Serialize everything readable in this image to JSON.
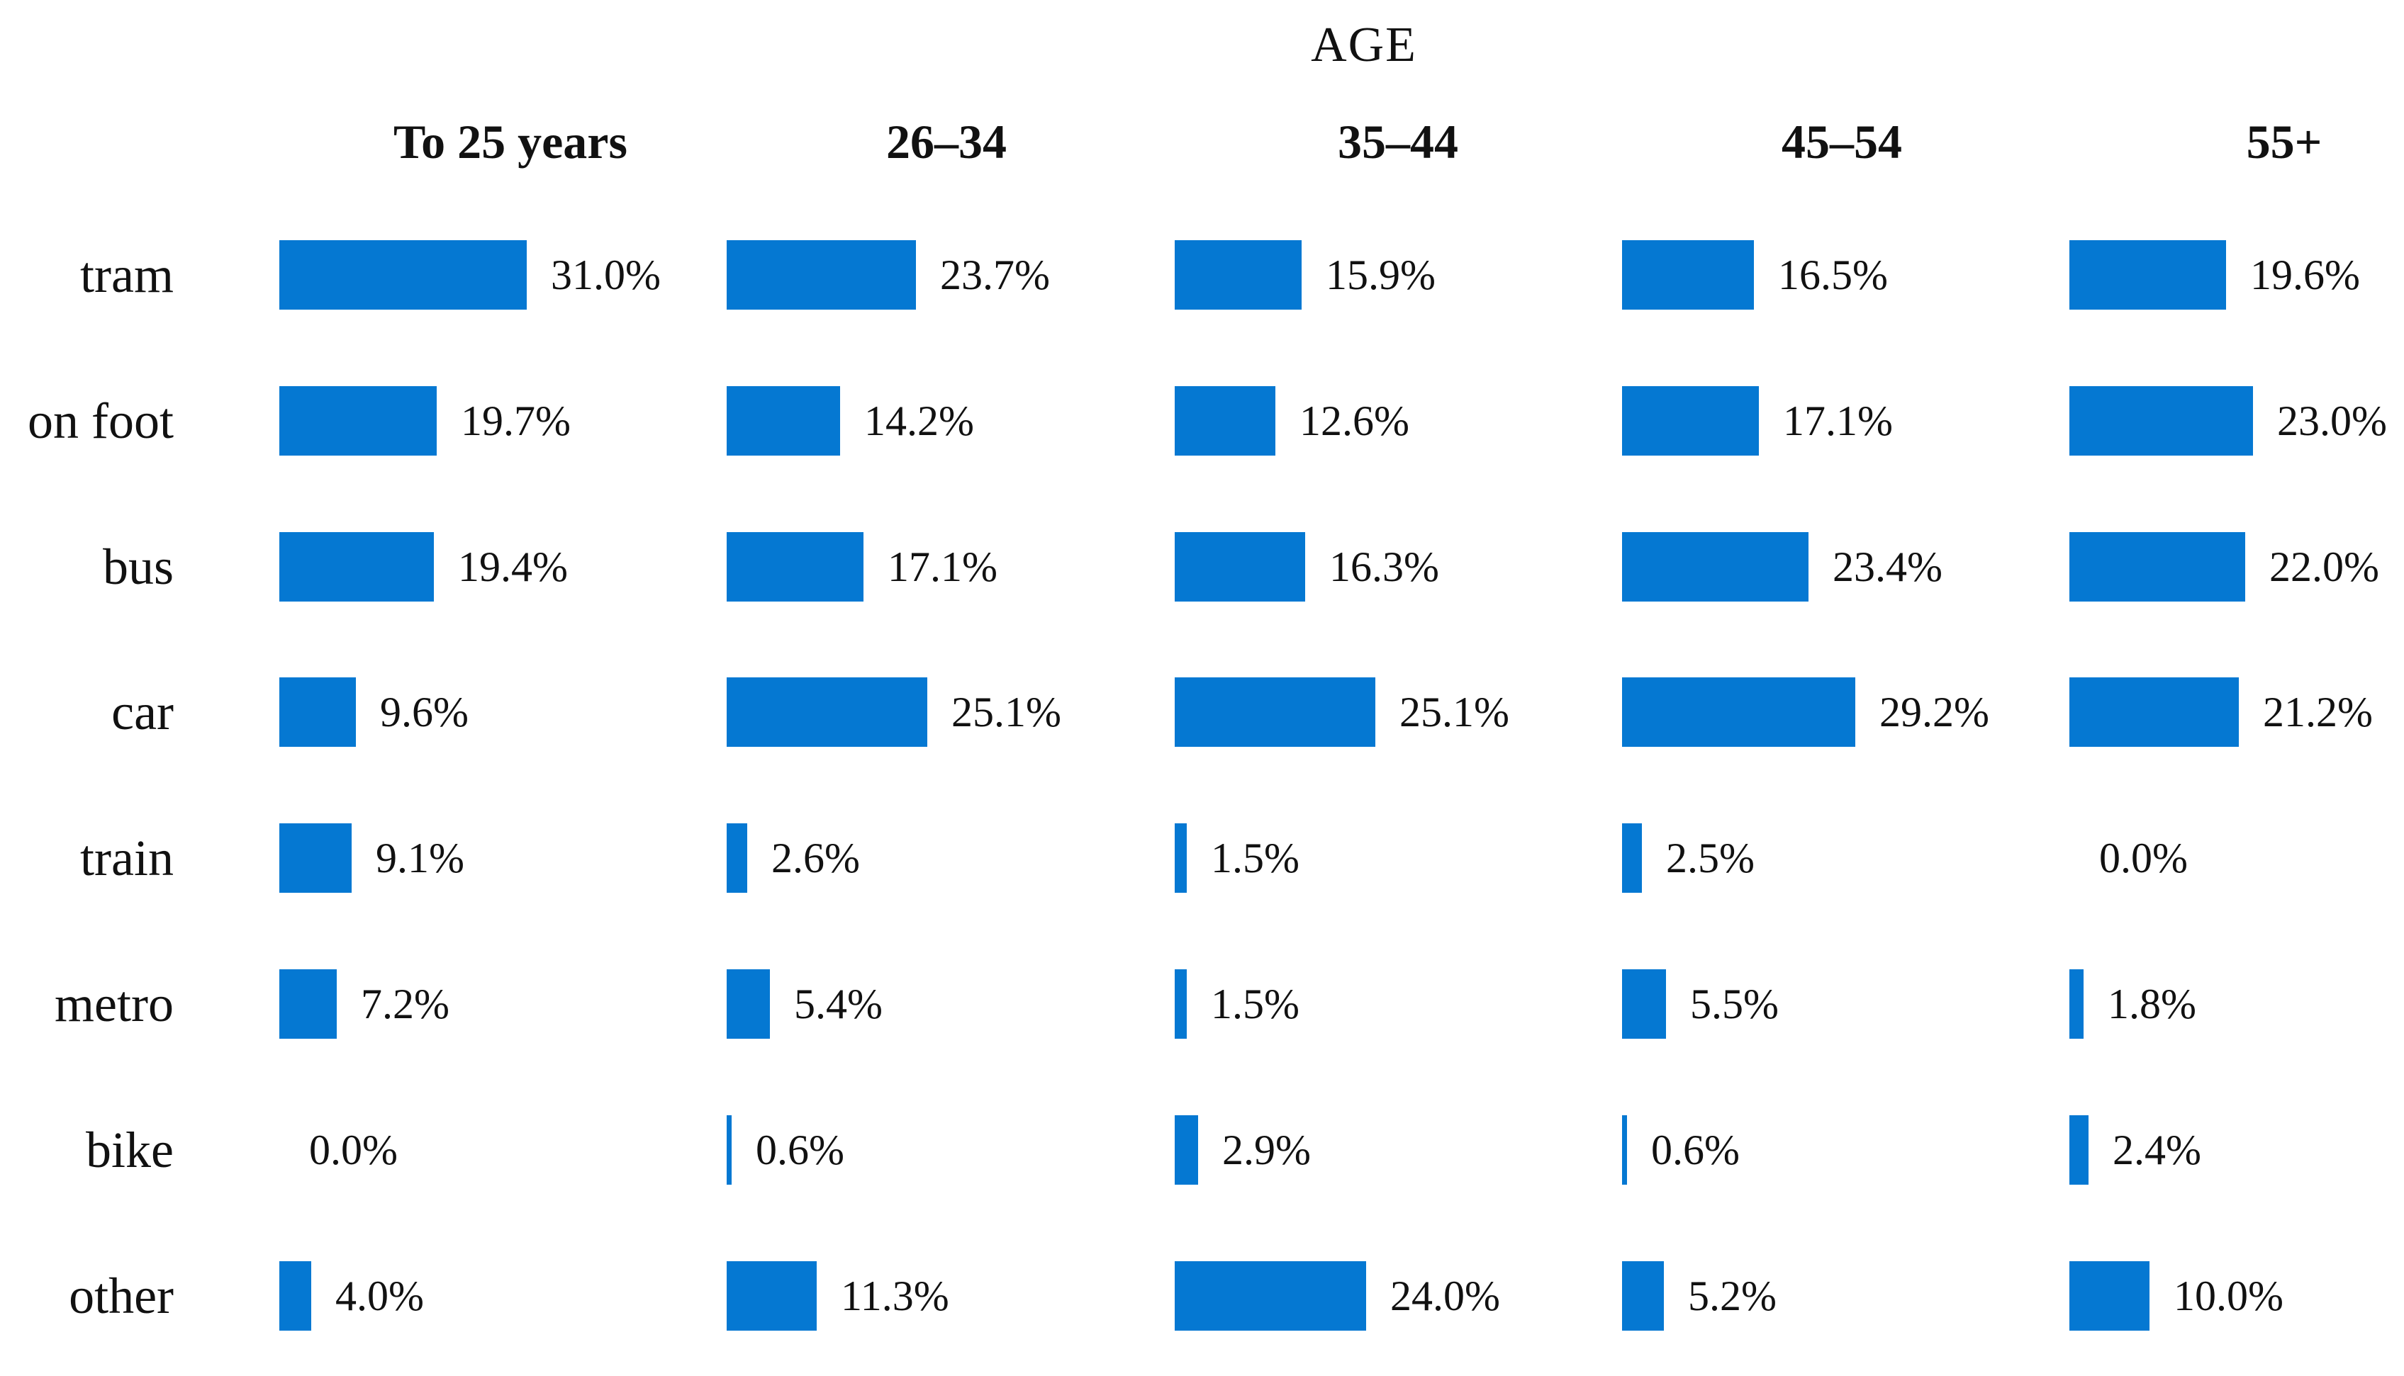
{
  "title": "AGE",
  "chart_data": {
    "type": "bar",
    "orientation": "horizontal",
    "title": "AGE",
    "column_headers": [
      "To 25 years",
      "26–34",
      "35–44",
      "45–54",
      "55+"
    ],
    "row_categories": [
      "tram",
      "on foot",
      "bus",
      "car",
      "train",
      "metro",
      "bike",
      "other"
    ],
    "series": [
      {
        "name": "To 25 years",
        "values": [
          31.0,
          19.7,
          19.4,
          9.6,
          9.1,
          7.2,
          0.0,
          4.0
        ]
      },
      {
        "name": "26–34",
        "values": [
          23.7,
          14.2,
          17.1,
          25.1,
          2.6,
          5.4,
          0.6,
          11.3
        ]
      },
      {
        "name": "35–44",
        "values": [
          15.9,
          12.6,
          16.3,
          25.1,
          1.5,
          1.5,
          2.9,
          24.0
        ]
      },
      {
        "name": "45–54",
        "values": [
          16.5,
          17.1,
          23.4,
          29.2,
          2.5,
          5.5,
          0.6,
          5.2
        ]
      },
      {
        "name": "55+",
        "values": [
          19.6,
          23.0,
          22.0,
          21.2,
          0.0,
          1.8,
          2.4,
          10.0
        ]
      }
    ],
    "value_labels": [
      [
        "31.0%",
        "19.7%",
        "19.4%",
        "9.6%",
        "9.1%",
        "7.2%",
        "0.0%",
        "4.0%"
      ],
      [
        "23.7%",
        "14.2%",
        "17.1%",
        "25.1%",
        "2.6%",
        "5.4%",
        "0.6%",
        "11.3%"
      ],
      [
        "15.9%",
        "12.6%",
        "16.3%",
        "25.1%",
        "1.5%",
        "1.5%",
        "2.9%",
        "24.0%"
      ],
      [
        "16.5%",
        "17.1%",
        "23.4%",
        "29.2%",
        "2.5%",
        "5.5%",
        "0.6%",
        "5.2%"
      ],
      [
        "19.6%",
        "23.0%",
        "22.0%",
        "21.2%",
        "0.0%",
        "1.8%",
        "2.4%",
        "10.0%"
      ]
    ],
    "value_format": "percent_one_decimal",
    "bar_color": "#0578d2",
    "legend": "none",
    "gridlines": false,
    "axes_shown": false
  }
}
